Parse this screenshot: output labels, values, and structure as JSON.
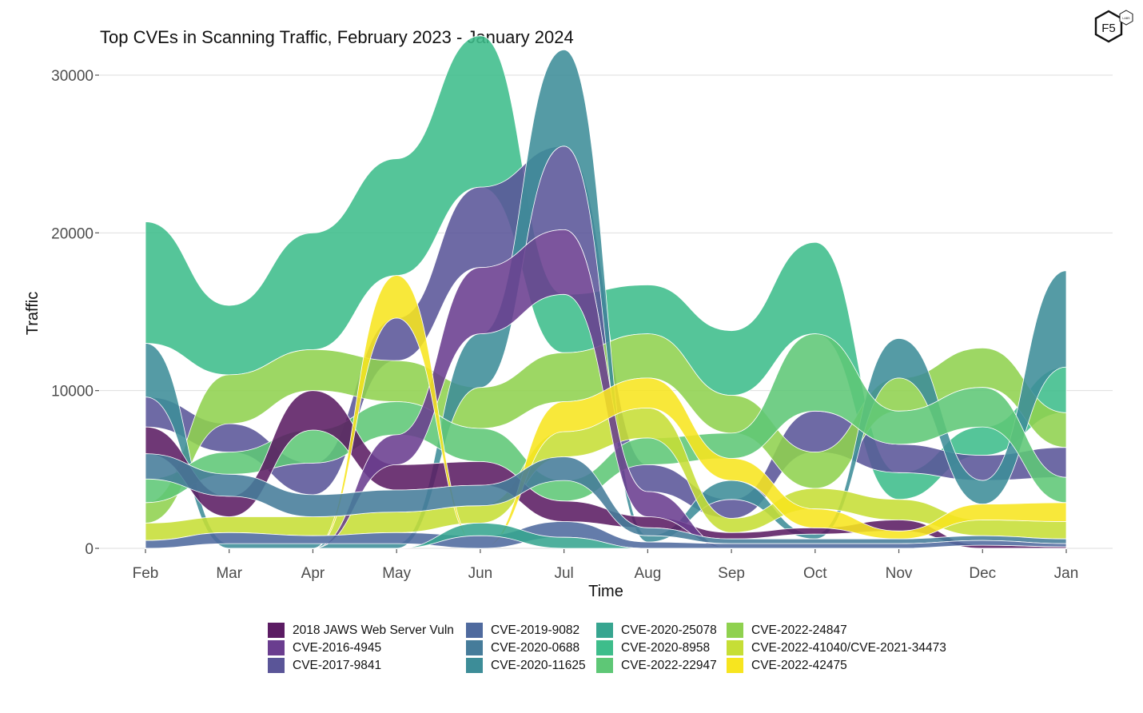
{
  "logo": {
    "text": "F5",
    "subtext": "LABS"
  },
  "chart_data": {
    "type": "area",
    "subtype": "bump-stream",
    "title": "Top CVEs in Scanning Traffic, February 2023 - January 2024",
    "xlabel": "Time",
    "ylabel": "Traffic",
    "ylim": [
      0,
      30000
    ],
    "yticks": [
      0,
      10000,
      20000,
      30000
    ],
    "grid": "horizontal",
    "legend_position": "bottom",
    "categories": [
      "Feb",
      "Mar",
      "Apr",
      "May",
      "Jun",
      "Jul",
      "Aug",
      "Sep",
      "Oct",
      "Nov",
      "Dec",
      "Jan"
    ],
    "series": [
      {
        "name": "2018 JAWS Web Server Vuln",
        "color": "#5b1c63",
        "values": [
          1700,
          1300,
          2500,
          1600,
          1500,
          1300,
          700,
          400,
          400,
          700,
          200,
          100
        ]
      },
      {
        "name": "CVE-2016-4945",
        "color": "#6a3d8f",
        "values": [
          0,
          0,
          0,
          1900,
          4200,
          4100,
          1600,
          0,
          0,
          0,
          0,
          0
        ]
      },
      {
        "name": "CVE-2017-9841",
        "color": "#5a5598",
        "values": [
          1900,
          1800,
          2000,
          2700,
          5100,
          5300,
          1700,
          1200,
          2600,
          1800,
          1600,
          1900
        ]
      },
      {
        "name": "CVE-2019-9082",
        "color": "#4f6a9e",
        "values": [
          500,
          700,
          500,
          700,
          800,
          1000,
          400,
          300,
          300,
          300,
          300,
          200
        ]
      },
      {
        "name": "CVE-2020-0688",
        "color": "#467c9a",
        "values": [
          1600,
          1400,
          1400,
          1400,
          1300,
          1500,
          500,
          300,
          300,
          300,
          300,
          300
        ]
      },
      {
        "name": "CVE-2020-11625",
        "color": "#3d8d98",
        "values": [
          3400,
          300,
          300,
          300,
          3400,
          6100,
          400,
          1200,
          300,
          2500,
          1500,
          6100
        ]
      },
      {
        "name": "CVE-2020-25078",
        "color": "#37a590",
        "values": [
          0,
          0,
          0,
          0,
          800,
          700,
          0,
          0,
          0,
          0,
          0,
          0
        ]
      },
      {
        "name": "CVE-2020-8958",
        "color": "#3ebd8b",
        "values": [
          7700,
          4400,
          7400,
          7400,
          9600,
          3700,
          3100,
          4100,
          5800,
          1700,
          1800,
          2900
        ]
      },
      {
        "name": "CVE-2022-22947",
        "color": "#5ec776",
        "values": [
          1500,
          1400,
          2100,
          2100,
          2100,
          1300,
          1700,
          1600,
          4900,
          2100,
          2500,
          1600
        ]
      },
      {
        "name": "CVE-2022-24847",
        "color": "#8fd14f",
        "values": [
          1300,
          3100,
          2600,
          2600,
          2600,
          3100,
          2800,
          2400,
          2300,
          2100,
          2500,
          2200
        ]
      },
      {
        "name": "CVE-2022-41040/CVE-2021-34473",
        "color": "#c6de36",
        "values": [
          1100,
          1000,
          1200,
          1300,
          1100,
          1600,
          1900,
          900,
          1300,
          1300,
          1000,
          1100
        ]
      },
      {
        "name": "CVE-2022-42475",
        "color": "#f7e51f",
        "values": [
          0,
          0,
          0,
          2700,
          0,
          1900,
          1900,
          1400,
          1200,
          500,
          1000,
          1200
        ]
      }
    ]
  }
}
